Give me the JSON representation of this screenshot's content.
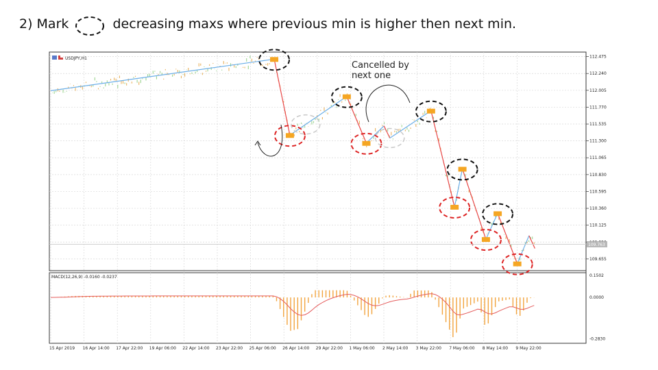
{
  "slide": {
    "title_before": "2) Mark",
    "title_after": "decreasing maxs where previous min is higher then next min."
  },
  "chart_data": {
    "type": "line",
    "symbol": "USDJPY,H1",
    "annotation": [
      "Cancelled by",
      "next one"
    ],
    "price_axis": {
      "ticks": [
        "112.475",
        "112.240",
        "112.005",
        "111.770",
        "111.535",
        "111.300",
        "111.065",
        "110.830",
        "110.595",
        "110.360",
        "110.125",
        "109.890",
        "109.655"
      ],
      "current_price": "109.763",
      "ylim": [
        109.52,
        112.5
      ]
    },
    "x_ticks": [
      "15 Apr 2019",
      "16 Apr 14:00",
      "17 Apr 22:00",
      "19 Apr 06:00",
      "22 Apr 14:00",
      "23 Apr 22:00",
      "25 Apr 06:00",
      "26 Apr 14:00",
      "29 Apr 22:00",
      "1 May 06:00",
      "2 May 14:00",
      "3 May 22:00",
      "7 May 06:00",
      "8 May 14:00",
      "9 May 22:00"
    ],
    "zigzag_pivots": [
      {
        "x": 0,
        "y": 112.0,
        "type": "start"
      },
      {
        "x": 11.4,
        "y": 112.44,
        "type": "max"
      },
      {
        "x": 12.2,
        "y": 111.38,
        "type": "min"
      },
      {
        "x": 15.1,
        "y": 111.92,
        "type": "max"
      },
      {
        "x": 16.1,
        "y": 111.27,
        "type": "min"
      },
      {
        "x": 17.0,
        "y": 111.51,
        "type": "max"
      },
      {
        "x": 17.3,
        "y": 111.34,
        "type": "min"
      },
      {
        "x": 19.4,
        "y": 111.72,
        "type": "max"
      },
      {
        "x": 20.6,
        "y": 110.38,
        "type": "min"
      },
      {
        "x": 21.0,
        "y": 110.91,
        "type": "max"
      },
      {
        "x": 22.2,
        "y": 109.93,
        "type": "min"
      },
      {
        "x": 22.8,
        "y": 110.29,
        "type": "max"
      },
      {
        "x": 23.8,
        "y": 109.59,
        "type": "min"
      },
      {
        "x": 24.4,
        "y": 109.98,
        "type": "max"
      },
      {
        "x": 24.7,
        "y": 109.8,
        "type": "end"
      }
    ],
    "marked_maxs": [
      11.4,
      15.1,
      19.4,
      21.0,
      22.8
    ],
    "marked_mins": [
      12.2,
      16.1,
      20.6,
      22.2,
      23.8
    ],
    "cancelled_marks": [
      13.0,
      17.3
    ],
    "indicator": {
      "label": "MACD(12,26,9) -0.0160 -0.0237",
      "ticks": [
        "0.1502",
        "0.0000",
        "-0.2830"
      ],
      "ylim": [
        -0.3,
        0.16
      ]
    }
  },
  "colors": {
    "max_mark": "#111111",
    "min_mark": "#dd2222",
    "cancelled_mark": "#c8c8c8",
    "zigzag_red": "#e84545",
    "zigzag_blue": "#6aaee8",
    "pivot_box": "#f5a623",
    "macd_hist": "#f2a33c",
    "macd_signal": "#e45a5a"
  }
}
